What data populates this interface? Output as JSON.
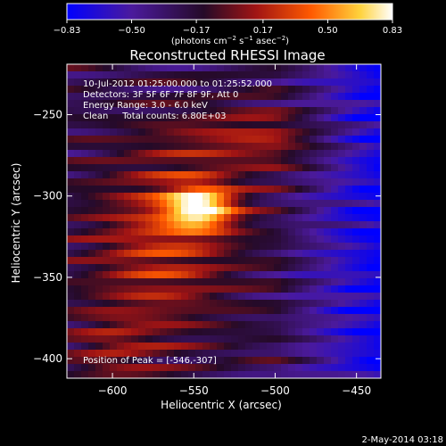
{
  "chart_data": {
    "type": "heatmap",
    "title": "Reconstructed RHESSI Image",
    "xlabel": "Heliocentric X (arcsec)",
    "ylabel": "Heliocentric Y (arcsec)",
    "xlim": [
      -628,
      -435
    ],
    "ylim": [
      -412,
      -219
    ],
    "x_ticks": [
      -600,
      -550,
      -500,
      -450
    ],
    "y_ticks": [
      -250,
      -300,
      -350,
      -400
    ],
    "x_tick_labels": [
      "−600",
      "−550",
      "−500",
      "−450"
    ],
    "y_tick_labels": [
      "−250",
      "−300",
      "−350",
      "−400"
    ],
    "colorbar": {
      "range": [
        -0.83,
        0.83
      ],
      "ticks": [
        -0.83,
        -0.5,
        -0.17,
        0.17,
        0.5,
        0.83
      ],
      "tick_labels": [
        "−0.83",
        "−0.50",
        "−0.17",
        "0.17",
        "0.50",
        "0.83"
      ],
      "unit_text": "(photons cm",
      "unit_exp1": "−2",
      "unit_mid": " s",
      "unit_exp2": "−1",
      "unit_tail": " asec",
      "unit_exp3": "−2",
      "unit_close": ")"
    },
    "annotations": [
      "10-Jul-2012 01:25:00.000 to 01:25:52.000",
      "Detectors: 3F 5F 6F 7F 8F 9F, Att 0",
      "Energy Range: 3.0 - 6.0 keV",
      "Clean     Total counts: 6.80E+03"
    ],
    "peak_label": "Position of Peak = [-546,-307]",
    "peak": [
      -546,
      -307
    ],
    "colors": {
      "stops": [
        "#0000ff",
        "#4b1a9c",
        "#2a0a2a",
        "#a01414",
        "#ff5a00",
        "#ffd23c",
        "#ffffff"
      ]
    }
  },
  "footer": {
    "date": "2-May-2014 03:18"
  }
}
